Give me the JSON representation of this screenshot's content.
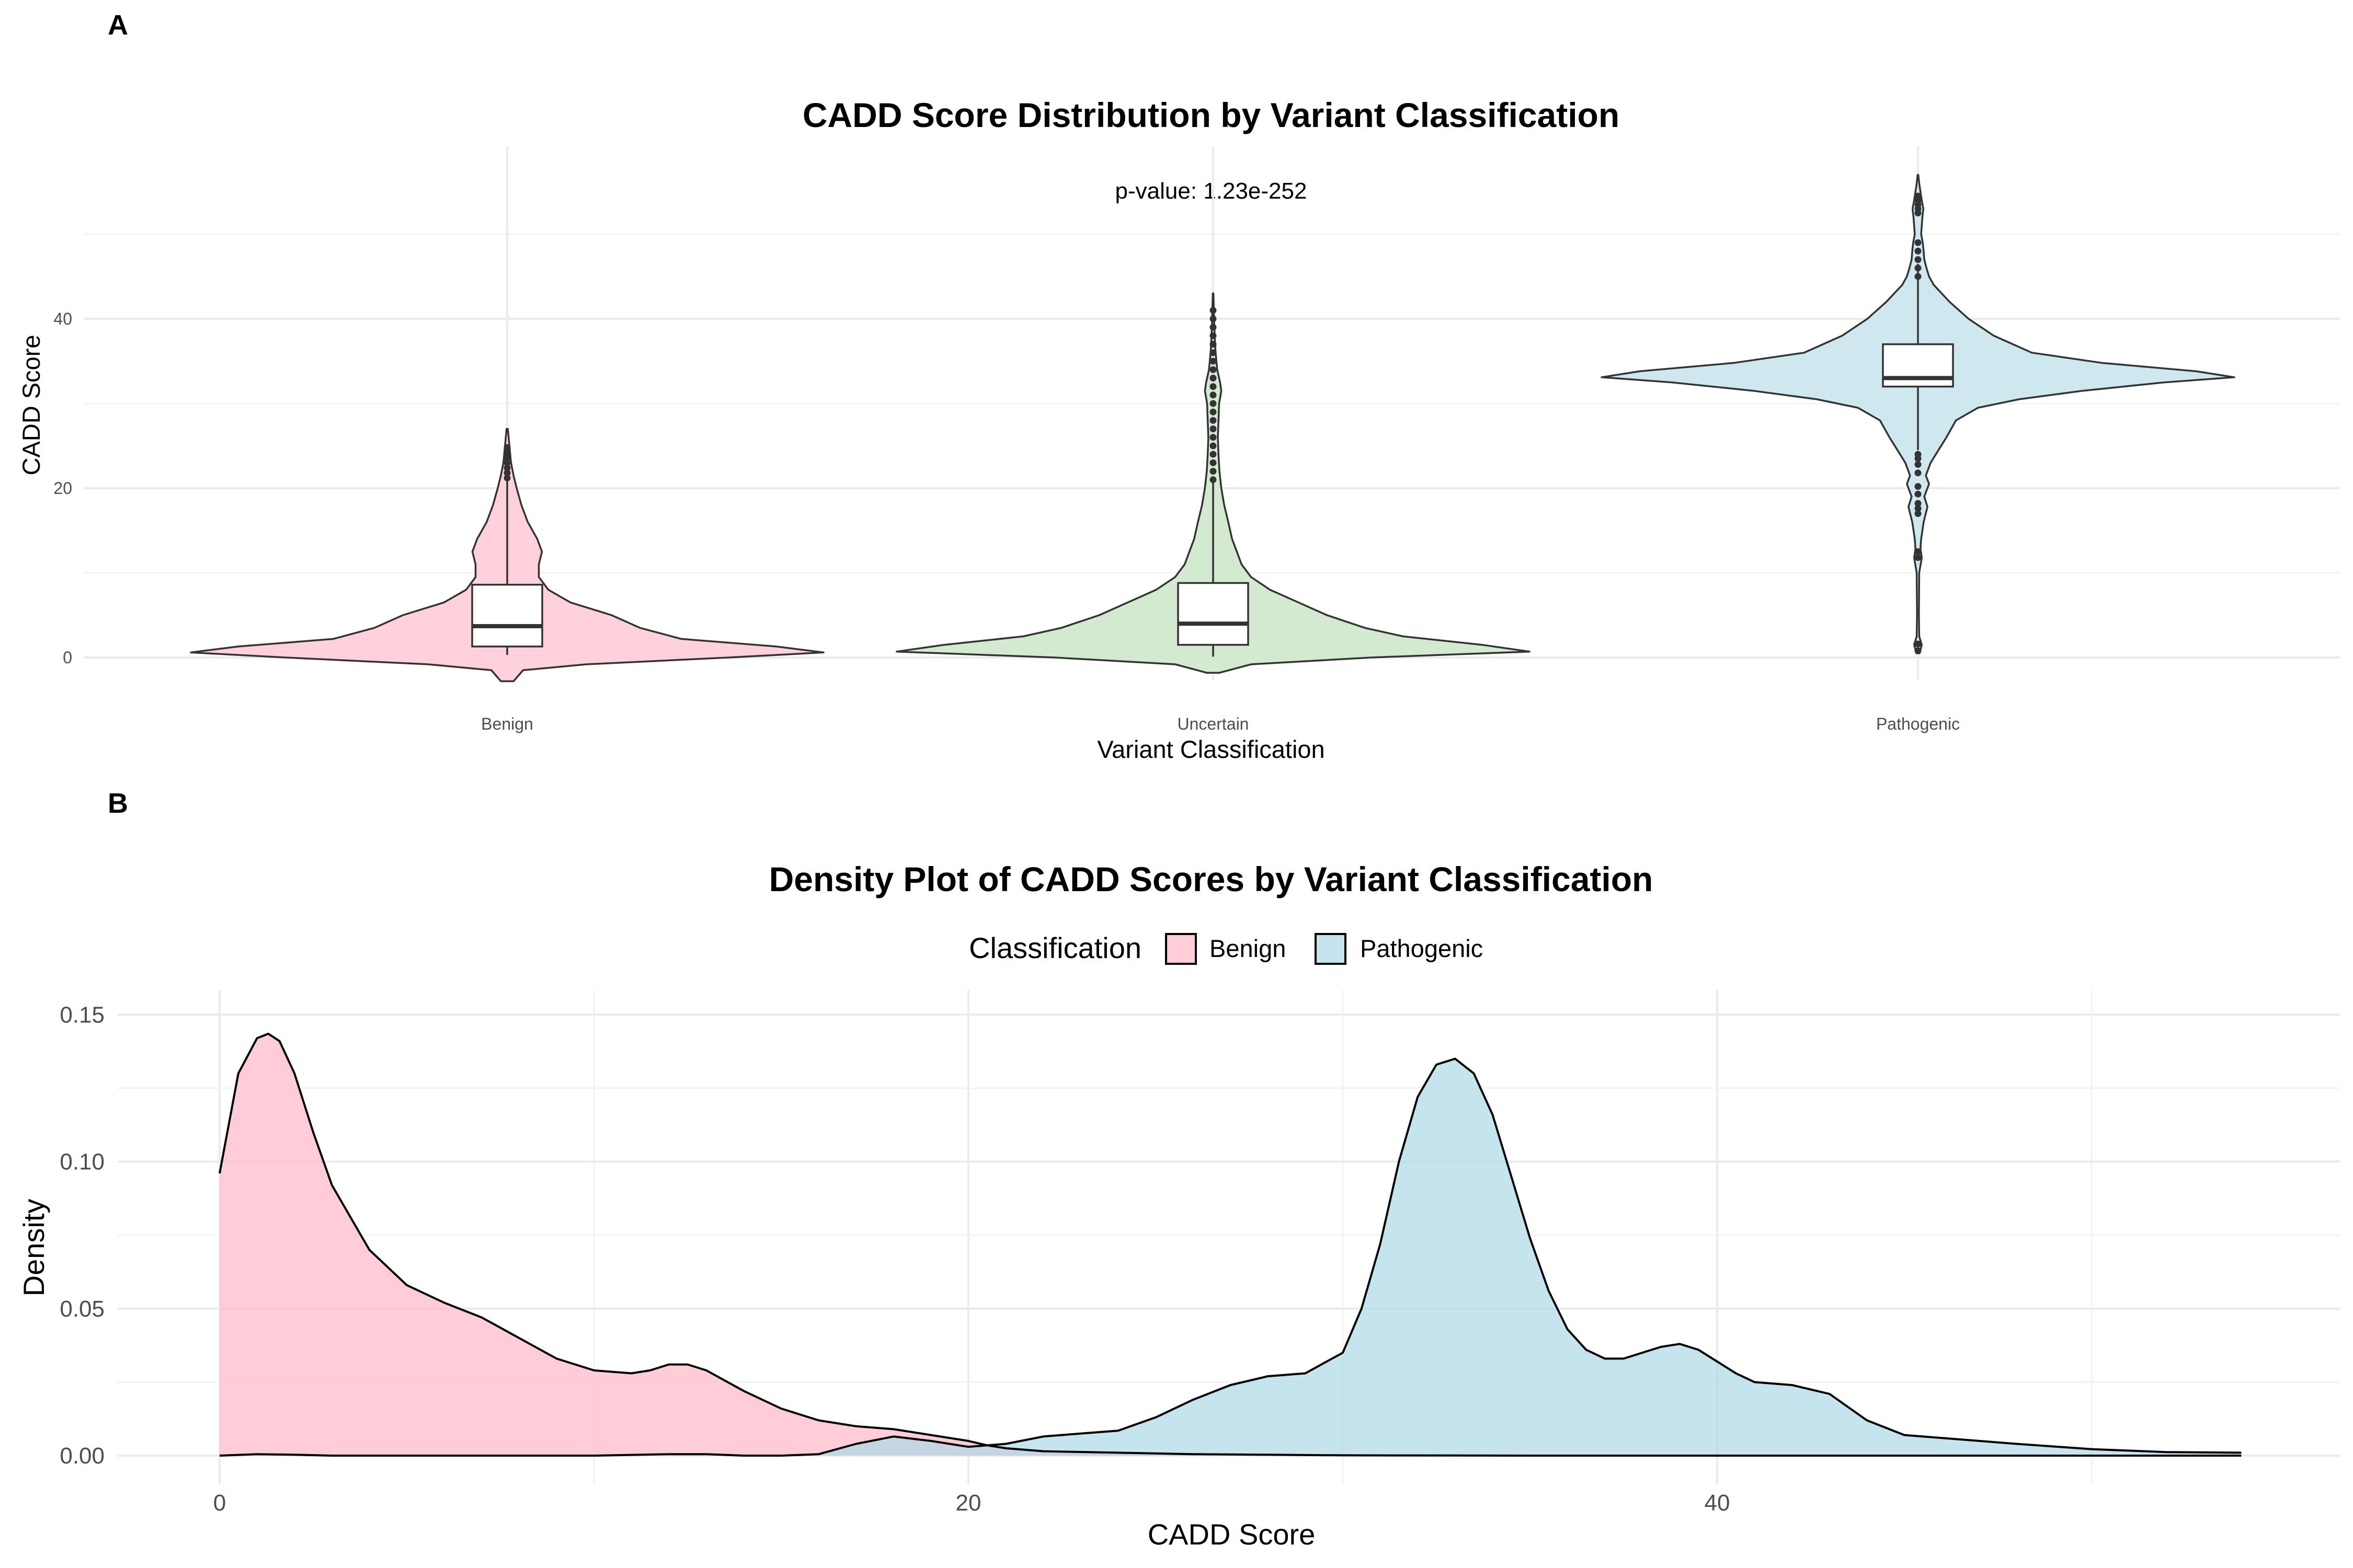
{
  "chart_data": [
    {
      "panel": "A",
      "type": "violin",
      "title": "CADD Score Distribution by Variant Classification",
      "annotation": "p-value: 1.23e-252",
      "xlabel": "Variant Classification",
      "ylabel": "CADD Score",
      "categories": [
        "Benign",
        "Uncertain",
        "Pathogenic"
      ],
      "yticks": [
        0,
        20,
        40
      ],
      "ylim": [
        -4,
        60
      ],
      "colors": [
        "#ffd1dc",
        "#d4ead0",
        "#cfe8f0"
      ],
      "violins": [
        {
          "name": "Benign",
          "box": {
            "q1": 1.3,
            "median": 3.7,
            "q3": 8.6,
            "whisker_low": 0.3,
            "whisker_high": 21
          },
          "ymin": -2.8,
          "ymax": 27,
          "outliers": [
            21.2,
            21.8,
            22.4,
            23.0,
            23.6,
            24.2,
            24.8
          ],
          "profile": [
            [
              -2.8,
              0.02
            ],
            [
              -1.5,
              0.05
            ],
            [
              -0.8,
              0.25
            ],
            [
              0,
              0.7
            ],
            [
              0.6,
              1.0
            ],
            [
              1.3,
              0.85
            ],
            [
              2.2,
              0.55
            ],
            [
              3.5,
              0.42
            ],
            [
              5,
              0.33
            ],
            [
              6.5,
              0.2
            ],
            [
              8,
              0.13
            ],
            [
              9.5,
              0.1
            ],
            [
              11,
              0.1
            ],
            [
              12.5,
              0.11
            ],
            [
              14,
              0.095
            ],
            [
              16,
              0.065
            ],
            [
              18,
              0.045
            ],
            [
              20,
              0.03
            ],
            [
              21.5,
              0.02
            ],
            [
              23,
              0.012
            ],
            [
              25,
              0.007
            ],
            [
              27,
              0.002
            ]
          ]
        },
        {
          "name": "Uncertain",
          "box": {
            "q1": 1.5,
            "median": 4.0,
            "q3": 8.8,
            "whisker_low": 0.1,
            "whisker_high": 21
          },
          "ymin": -1.8,
          "ymax": 43,
          "outliers": [
            21,
            22,
            23,
            24,
            25,
            26,
            27,
            28,
            29,
            30,
            31,
            32,
            33,
            34,
            35,
            36,
            37,
            38,
            39,
            40,
            41
          ],
          "profile": [
            [
              -1.8,
              0.02
            ],
            [
              -0.8,
              0.12
            ],
            [
              0,
              0.5
            ],
            [
              0.7,
              1.0
            ],
            [
              1.5,
              0.85
            ],
            [
              2.5,
              0.6
            ],
            [
              3.5,
              0.48
            ],
            [
              5,
              0.36
            ],
            [
              6.5,
              0.27
            ],
            [
              8,
              0.18
            ],
            [
              9.5,
              0.12
            ],
            [
              11,
              0.09
            ],
            [
              12.5,
              0.075
            ],
            [
              14,
              0.06
            ],
            [
              16,
              0.048
            ],
            [
              18,
              0.035
            ],
            [
              20,
              0.026
            ],
            [
              22,
              0.02
            ],
            [
              24,
              0.017
            ],
            [
              26,
              0.015
            ],
            [
              28,
              0.017
            ],
            [
              30,
              0.019
            ],
            [
              31.5,
              0.026
            ],
            [
              32.5,
              0.022
            ],
            [
              34,
              0.013
            ],
            [
              36,
              0.008
            ],
            [
              38,
              0.005
            ],
            [
              40,
              0.003
            ],
            [
              43,
              0.001
            ]
          ]
        },
        {
          "name": "Pathogenic",
          "box": {
            "q1": 32,
            "median": 33,
            "q3": 37,
            "whisker_low": 24.5,
            "whisker_high": 46.5
          },
          "ymin": 0.5,
          "ymax": 57,
          "outliers": [
            0.8,
            1.6,
            11.8,
            12.5,
            17,
            17.6,
            18.2,
            19.3,
            20.2,
            21.8,
            22.8,
            23.5,
            24,
            45,
            46,
            47,
            48,
            49,
            52.5,
            53,
            53.5,
            54,
            54.5
          ],
          "profile": [
            [
              0.5,
              0.005
            ],
            [
              1.5,
              0.012
            ],
            [
              2.5,
              0.004
            ],
            [
              5,
              0.003
            ],
            [
              10,
              0.004
            ],
            [
              11.8,
              0.012
            ],
            [
              12.8,
              0.008
            ],
            [
              14,
              0.01
            ],
            [
              16,
              0.018
            ],
            [
              17.8,
              0.03
            ],
            [
              19,
              0.02
            ],
            [
              20.5,
              0.035
            ],
            [
              21.5,
              0.025
            ],
            [
              23,
              0.04
            ],
            [
              24.5,
              0.065
            ],
            [
              26,
              0.09
            ],
            [
              28,
              0.12
            ],
            [
              29.5,
              0.19
            ],
            [
              30.5,
              0.32
            ],
            [
              31.5,
              0.52
            ],
            [
              32.5,
              0.78
            ],
            [
              33.1,
              1.0
            ],
            [
              33.8,
              0.88
            ],
            [
              34.8,
              0.58
            ],
            [
              36,
              0.36
            ],
            [
              37,
              0.3
            ],
            [
              38,
              0.24
            ],
            [
              39,
              0.2
            ],
            [
              40,
              0.16
            ],
            [
              41,
              0.13
            ],
            [
              42,
              0.1
            ],
            [
              43,
              0.075
            ],
            [
              44,
              0.05
            ],
            [
              45,
              0.035
            ],
            [
              46,
              0.027
            ],
            [
              47,
              0.02
            ],
            [
              48,
              0.018
            ],
            [
              49,
              0.015
            ],
            [
              50,
              0.01
            ],
            [
              51,
              0.012
            ],
            [
              52,
              0.014
            ],
            [
              53,
              0.017
            ],
            [
              54,
              0.012
            ],
            [
              55,
              0.008
            ],
            [
              56,
              0.004
            ],
            [
              57,
              0.001
            ]
          ]
        }
      ]
    },
    {
      "panel": "B",
      "type": "area",
      "title": "Density Plot of CADD Scores by Variant Classification",
      "xlabel": "CADD Score",
      "ylabel": "Density",
      "xlim": [
        -2.2,
        56.6
      ],
      "ylim": [
        -0.009,
        0.158
      ],
      "xticks": [
        0,
        20,
        40
      ],
      "yticks": [
        0,
        0.05,
        0.1,
        0.15
      ],
      "ytick_labels": [
        "0.00",
        "0.05",
        "0.10",
        "0.15"
      ],
      "legend": {
        "title": "Classification",
        "position": "top",
        "entries": [
          "Benign",
          "Pathogenic"
        ]
      },
      "series": [
        {
          "name": "Benign",
          "color": "#ffb6c6",
          "x": [
            0,
            0.5,
            1,
            1.3,
            1.6,
            2,
            2.5,
            3,
            4,
            5,
            6,
            7,
            8,
            9,
            10,
            11,
            11.5,
            12,
            12.5,
            13,
            14,
            15,
            16,
            17,
            18,
            19,
            20,
            20.5,
            21,
            22,
            24,
            26,
            28,
            30,
            35,
            40,
            45,
            50,
            54
          ],
          "values": [
            0.096,
            0.13,
            0.142,
            0.1435,
            0.141,
            0.13,
            0.11,
            0.092,
            0.07,
            0.058,
            0.052,
            0.047,
            0.04,
            0.033,
            0.029,
            0.028,
            0.029,
            0.031,
            0.031,
            0.029,
            0.022,
            0.016,
            0.012,
            0.01,
            0.009,
            0.007,
            0.005,
            0.0035,
            0.0025,
            0.0015,
            0.001,
            0.0005,
            0.0003,
            0.0001,
            0,
            0,
            0,
            0,
            0
          ]
        },
        {
          "name": "Pathogenic",
          "color": "#add8e6",
          "x": [
            0,
            1,
            2,
            3,
            5,
            8,
            10,
            12,
            13,
            14,
            15,
            16,
            17,
            18,
            19,
            20,
            21,
            22,
            23,
            24,
            25,
            26,
            27,
            28,
            29,
            30,
            30.5,
            31,
            31.5,
            32,
            32.5,
            33,
            33.5,
            34,
            34.5,
            35,
            35.5,
            36,
            36.5,
            37,
            37.5,
            38,
            38.5,
            39,
            39.5,
            40,
            40.5,
            41,
            42,
            43,
            44,
            45,
            46,
            48,
            50,
            52,
            54
          ],
          "values": [
            0,
            0.0005,
            0.0003,
            0,
            0,
            0,
            0,
            0.0005,
            0.0005,
            0,
            0,
            0.0005,
            0.004,
            0.0065,
            0.005,
            0.003,
            0.004,
            0.0065,
            0.0075,
            0.0085,
            0.013,
            0.019,
            0.024,
            0.027,
            0.028,
            0.035,
            0.05,
            0.072,
            0.1,
            0.122,
            0.133,
            0.135,
            0.13,
            0.116,
            0.095,
            0.074,
            0.056,
            0.043,
            0.036,
            0.033,
            0.033,
            0.035,
            0.037,
            0.038,
            0.036,
            0.032,
            0.028,
            0.025,
            0.024,
            0.021,
            0.012,
            0.007,
            0.006,
            0.004,
            0.0022,
            0.0012,
            0.001
          ]
        }
      ]
    }
  ]
}
